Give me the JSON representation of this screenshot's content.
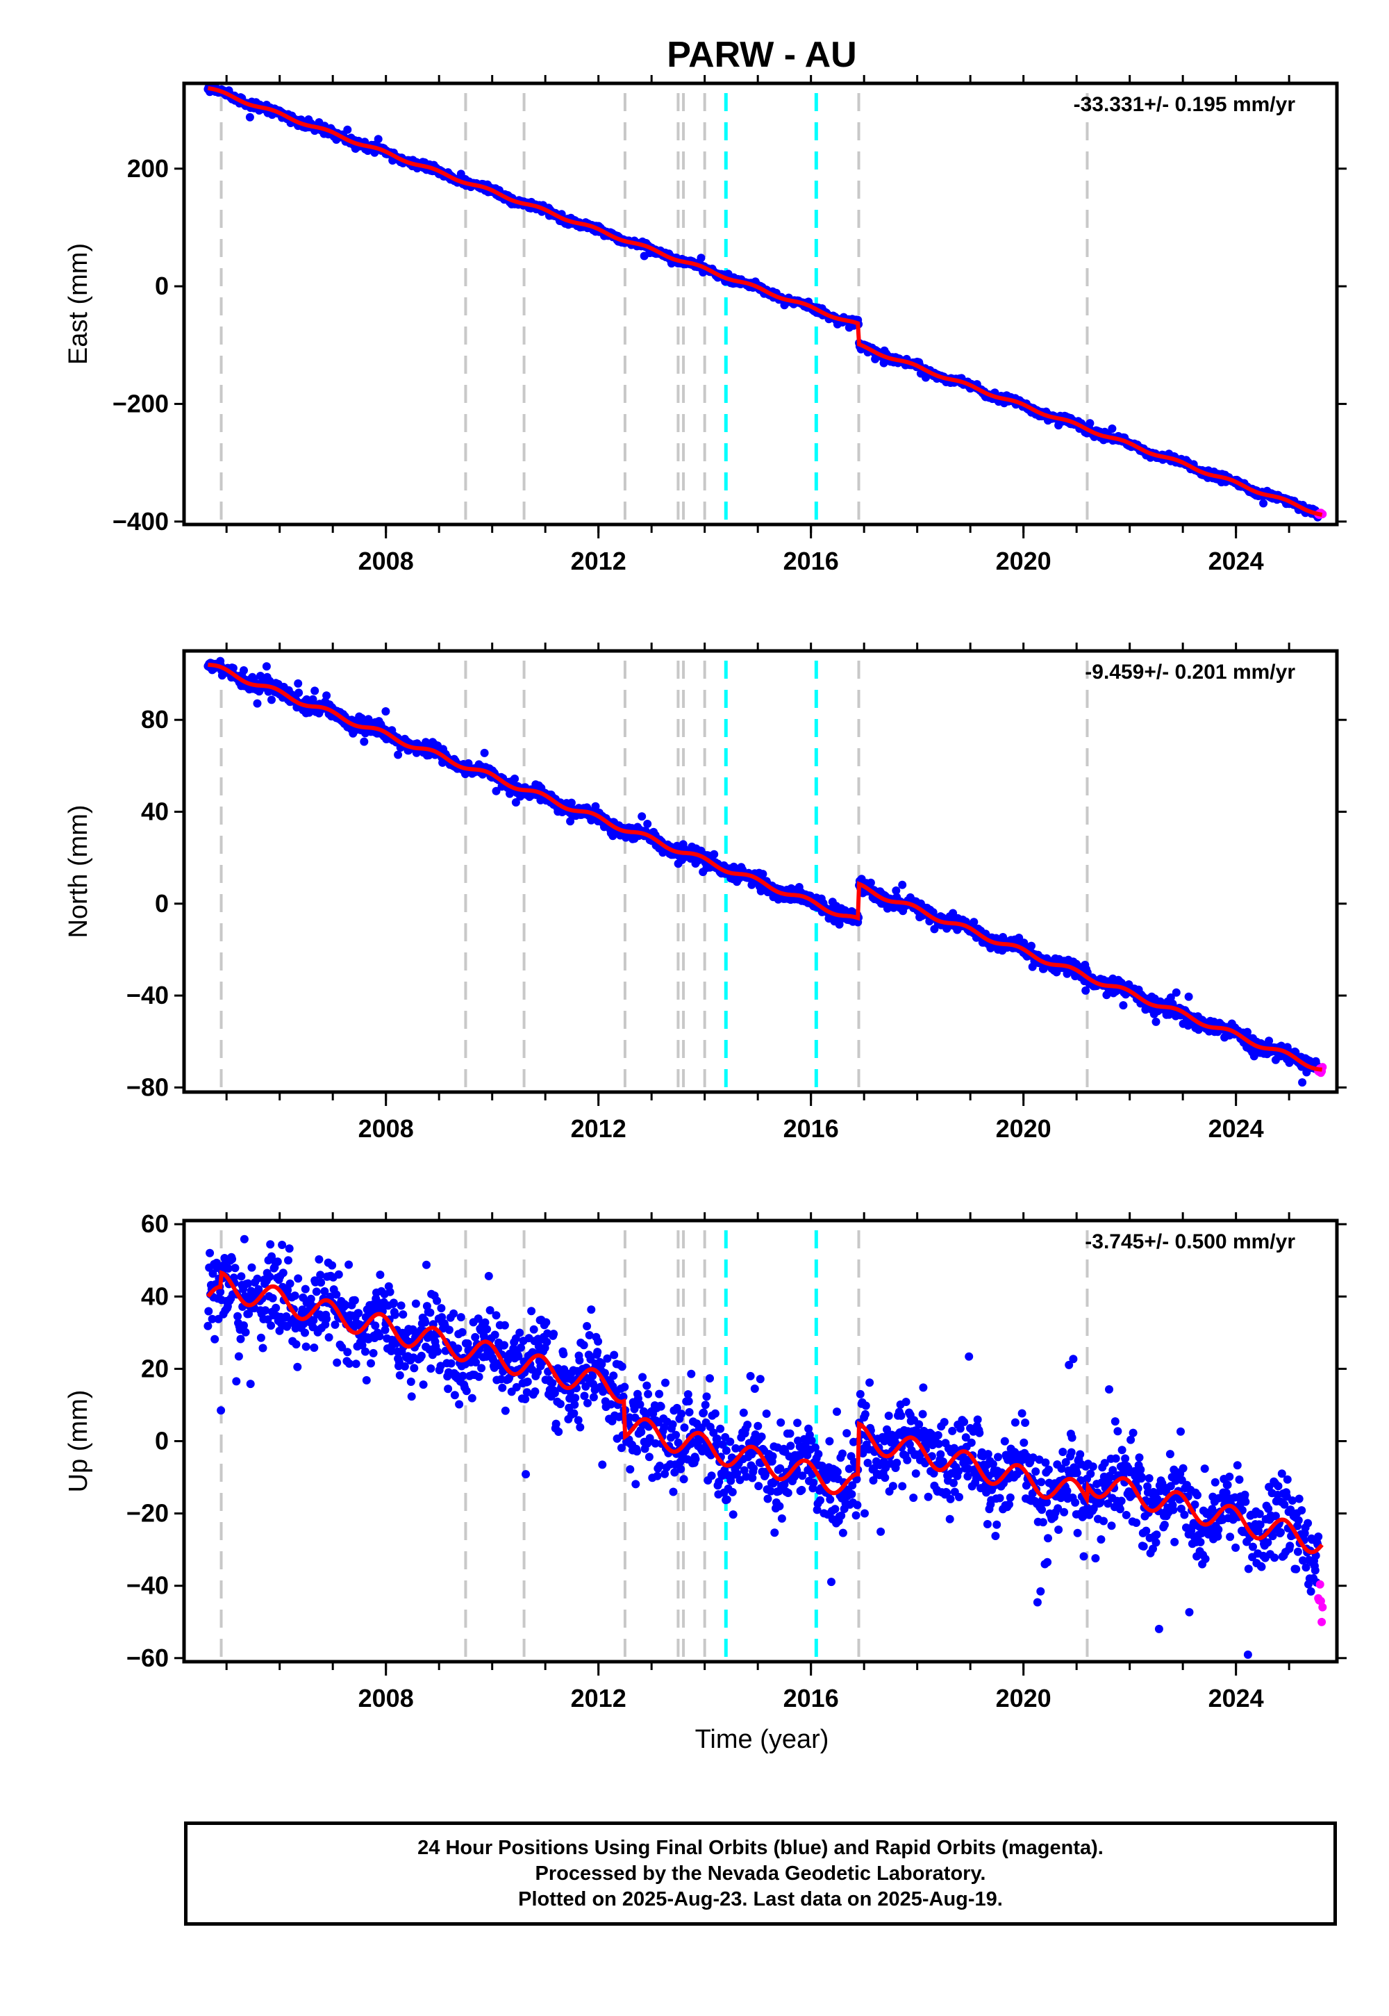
{
  "title": "PARW - AU",
  "xlabel": "Time (year)",
  "colors": {
    "final_orbits": "#0000ff",
    "rapid_orbits": "#ff00ff",
    "model_fit": "#ff0000",
    "antenna_change": "#c8c8c8",
    "earthquake_event": "#00ffff",
    "axes": "#000000"
  },
  "footer": {
    "line1": "24 Hour Positions Using Final Orbits (blue) and Rapid Orbits (magenta).",
    "line2": "Processed by the Nevada Geodetic Laboratory.",
    "line3": "Plotted on 2025-Aug-23. Last data on 2025-Aug-19."
  },
  "chart_data": [
    {
      "type": "scatter",
      "name_panel": "east",
      "ylabel": "East (mm)",
      "rate_label": "-33.331+/- 0.195 mm/yr",
      "xlim": [
        2004.2,
        2025.9
      ],
      "ylim": [
        -405,
        345
      ],
      "x_ticks": [
        2008,
        2012,
        2016,
        2020,
        2024
      ],
      "y_ticks": [
        200,
        0,
        -200,
        -400
      ],
      "y_tick_labels": [
        "200",
        "0",
        "−200",
        "−400"
      ],
      "event_lines_gray": [
        2004.9,
        2009.5,
        2010.6,
        2012.5,
        2013.5,
        2013.6,
        2014.0,
        2016.9,
        2021.2
      ],
      "event_lines_cyan": [
        2014.4,
        2016.1
      ],
      "trend": {
        "start": [
          2004.65,
          337
        ],
        "end": [
          2025.62,
          -388
        ]
      },
      "steps": [
        {
          "x": 2016.9,
          "dy": -35
        }
      ],
      "seasonal_amplitude": 2.5,
      "noise_sd": 3,
      "rapid": {
        "start": 2025.55,
        "end": 2025.63,
        "y": -387
      }
    },
    {
      "type": "scatter",
      "name_panel": "north",
      "ylabel": "North (mm)",
      "rate_label": "-9.459+/- 0.201 mm/yr",
      "xlim": [
        2004.2,
        2025.9
      ],
      "ylim": [
        -82,
        110
      ],
      "x_ticks": [
        2008,
        2012,
        2016,
        2020,
        2024
      ],
      "y_ticks": [
        80,
        40,
        0,
        -40,
        -80
      ],
      "y_tick_labels": [
        "80",
        "40",
        "0",
        "−40",
        "−80"
      ],
      "event_lines_gray": [
        2004.9,
        2009.5,
        2010.6,
        2012.5,
        2013.5,
        2013.6,
        2014.0,
        2016.9,
        2021.2
      ],
      "event_lines_cyan": [
        2014.4,
        2016.1
      ],
      "trend": {
        "start": [
          2004.65,
          104
        ],
        "end": [
          2025.62,
          -72
        ]
      },
      "steps": [
        {
          "x": 2016.9,
          "dy": 15
        }
      ],
      "seasonal_amplitude": 1.2,
      "noise_sd": 1.5,
      "rapid": {
        "start": 2025.55,
        "end": 2025.63,
        "y": -73
      }
    },
    {
      "type": "scatter",
      "name_panel": "up",
      "ylabel": "Up (mm)",
      "rate_label": "-3.745+/- 0.500 mm/yr",
      "xlim": [
        2004.2,
        2025.9
      ],
      "ylim": [
        -61,
        61
      ],
      "x_ticks": [
        2008,
        2012,
        2016,
        2020,
        2024
      ],
      "y_ticks": [
        60,
        40,
        20,
        0,
        -20,
        -40,
        -60
      ],
      "y_tick_labels": [
        "60",
        "40",
        "20",
        "0",
        "−20",
        "−40",
        "−60"
      ],
      "event_lines_gray": [
        2004.9,
        2009.5,
        2010.6,
        2012.5,
        2013.5,
        2013.6,
        2014.0,
        2016.9,
        2021.2
      ],
      "event_lines_cyan": [
        2014.4,
        2016.1
      ],
      "trend": {
        "start": [
          2004.65,
          40
        ],
        "end": [
          2025.62,
          -28
        ]
      },
      "steps": [
        {
          "x": 2004.9,
          "dy": 4
        },
        {
          "x": 2012.5,
          "dy": -10
        },
        {
          "x": 2016.9,
          "dy": 14
        },
        {
          "x": 2021.2,
          "dy": 4
        }
      ],
      "seasonal_amplitude": 3.5,
      "noise_sd": 6,
      "rapid": {
        "start": 2025.55,
        "end": 2025.63,
        "y": -45
      }
    }
  ]
}
